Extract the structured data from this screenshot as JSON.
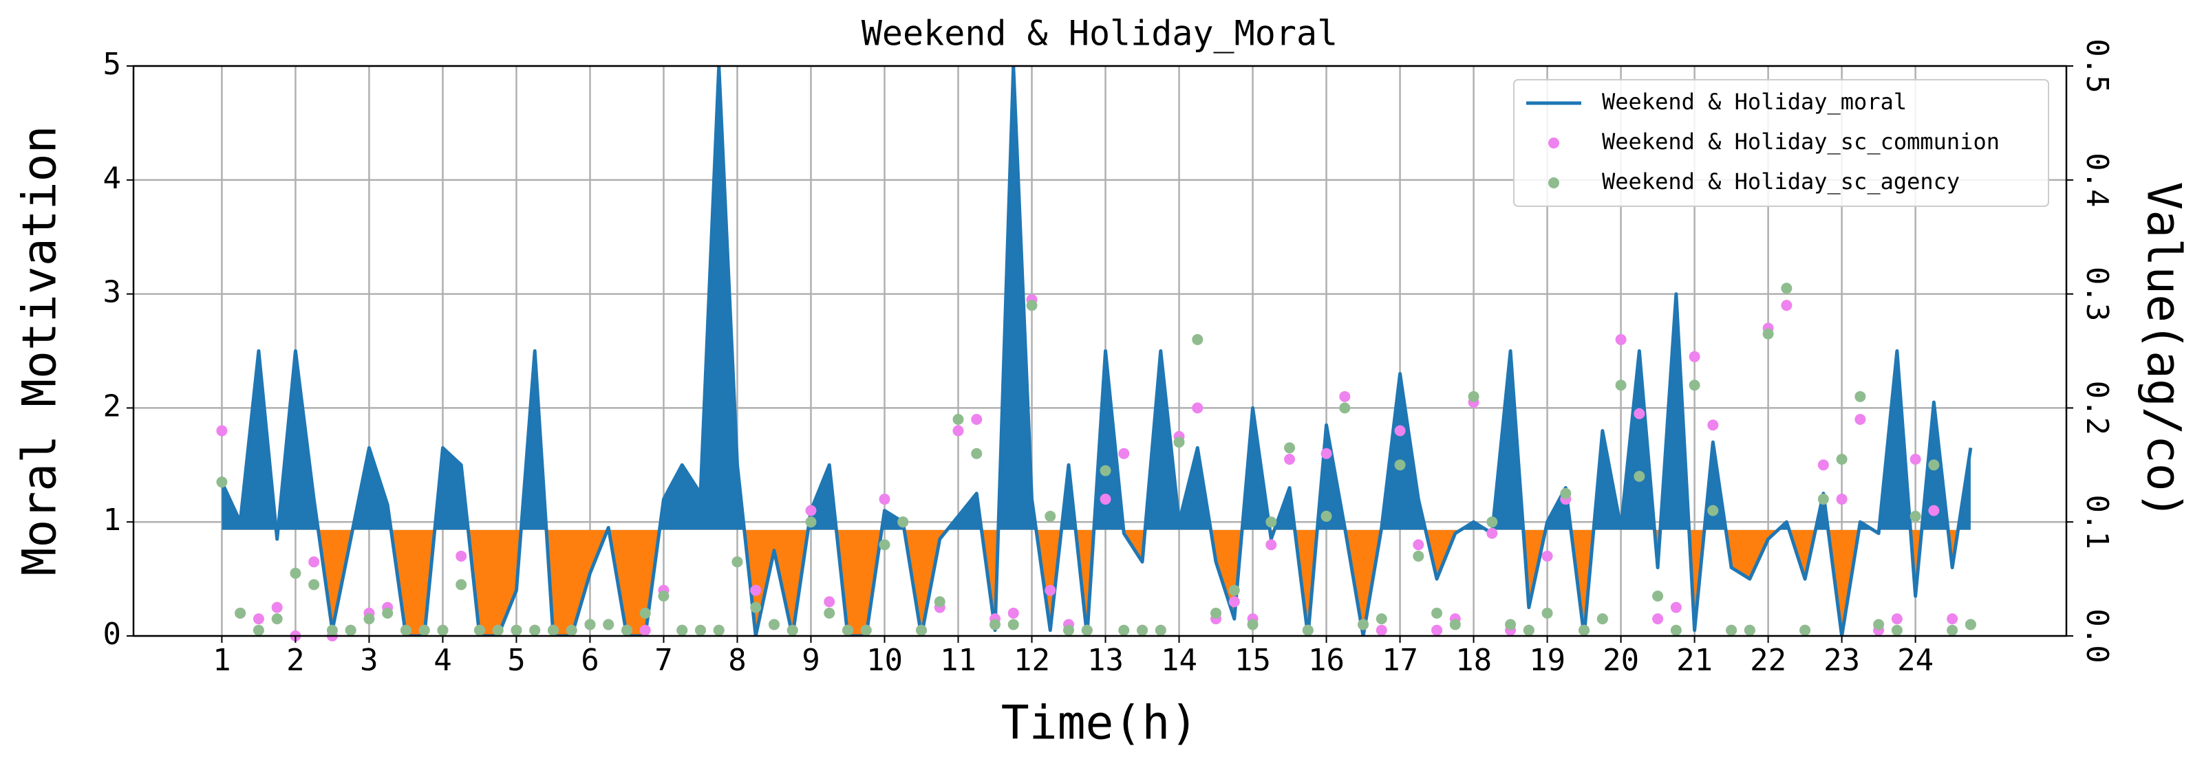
{
  "chart_data": {
    "type": "line",
    "title": "Weekend & Holiday_Moral",
    "xlabel": "Time(h)",
    "ylabel": "Moral Motivation",
    "y2label": "Value(ag/co)",
    "x": [
      1,
      1.25,
      1.5,
      1.75,
      2,
      2.25,
      2.5,
      2.75,
      3,
      3.25,
      3.5,
      3.75,
      4,
      4.25,
      4.5,
      4.75,
      5,
      5.25,
      5.5,
      5.75,
      6,
      6.25,
      6.5,
      6.75,
      7,
      7.25,
      7.5,
      7.75,
      8,
      8.25,
      8.5,
      8.75,
      9,
      9.25,
      9.5,
      9.75,
      10,
      10.25,
      10.5,
      10.75,
      11,
      11.25,
      11.5,
      11.75,
      12,
      12.25,
      12.5,
      12.75,
      13,
      13.25,
      13.5,
      13.75,
      14,
      14.25,
      14.5,
      14.75,
      15,
      15.25,
      15.5,
      15.75,
      16,
      16.25,
      16.5,
      16.75,
      17,
      17.25,
      17.5,
      17.75,
      18,
      18.25,
      18.5,
      18.75,
      19,
      19.25,
      19.5,
      19.75,
      20,
      20.25,
      20.5,
      20.75,
      21,
      21.25,
      21.5,
      21.75,
      22,
      22.25,
      22.5,
      22.75,
      23,
      23.25,
      23.5,
      23.75,
      24,
      24.25,
      24.5,
      24.75
    ],
    "xlim": [
      -0.2,
      26.05
    ],
    "xticks": [
      1,
      2,
      3,
      4,
      5,
      6,
      7,
      8,
      9,
      10,
      11,
      12,
      13,
      14,
      15,
      16,
      17,
      18,
      19,
      20,
      21,
      22,
      23,
      24
    ],
    "ylim": [
      0,
      5
    ],
    "yticks": [
      0,
      1,
      2,
      3,
      4,
      5
    ],
    "y2lim": [
      0,
      0.5
    ],
    "y2ticks": [
      {
        "value": 0,
        "label": "0.0"
      },
      {
        "value": 0.1,
        "label": "0.1"
      },
      {
        "value": 0.2,
        "label": "0.2"
      },
      {
        "value": 0.3,
        "label": "0.3"
      },
      {
        "value": 0.4,
        "label": "0.4"
      },
      {
        "value": 0.5,
        "label": "0.5"
      }
    ],
    "grid": true,
    "legend": "upper right",
    "fill": {
      "level": 0.93,
      "above_color": "#1f77b4",
      "below_color": "#ff7f0e"
    },
    "series": [
      {
        "name": "Weekend & Holiday_moral",
        "color": "#1f77b4",
        "style": "line",
        "values": [
          1.35,
          1.0,
          2.5,
          0.85,
          2.5,
          1.2,
          0.05,
          0.85,
          1.65,
          1.15,
          0.0,
          0.0,
          1.65,
          1.5,
          0.0,
          0.0,
          0.4,
          2.5,
          0.0,
          0.0,
          0.55,
          0.95,
          0.0,
          0.0,
          1.2,
          1.5,
          1.25,
          5.0,
          1.5,
          0.0,
          0.75,
          0.0,
          1.1,
          1.5,
          0.0,
          0.0,
          1.1,
          1.0,
          0.0,
          0.85,
          1.05,
          1.25,
          0.05,
          5.0,
          1.2,
          0.05,
          1.5,
          0.0,
          2.5,
          0.9,
          0.65,
          2.5,
          1.0,
          1.65,
          0.65,
          0.15,
          2.0,
          0.85,
          1.3,
          0.0,
          1.85,
          0.95,
          0.0,
          0.95,
          2.3,
          1.2,
          0.5,
          0.9,
          1.0,
          0.9,
          2.5,
          0.25,
          1.0,
          1.3,
          0.0,
          1.8,
          0.95,
          2.5,
          0.6,
          3.0,
          0.05,
          1.7,
          0.6,
          0.5,
          0.85,
          1.0,
          0.5,
          1.25,
          0.0,
          1.0,
          0.9,
          2.5,
          0.35,
          2.05,
          0.6,
          1.65
        ]
      },
      {
        "name": "Weekend & Holiday_sc_communion",
        "color": "#ee82ee",
        "style": "scatter",
        "axis": "y2",
        "values": [
          0.18,
          0.02,
          0.015,
          0.025,
          0.0,
          0.065,
          0.0,
          0.005,
          0.02,
          0.025,
          0.005,
          0.005,
          0.005,
          0.07,
          0.005,
          0.005,
          0.005,
          0.005,
          0.005,
          0.005,
          0.01,
          0.01,
          0.005,
          0.005,
          0.04,
          0.005,
          0.005,
          0.005,
          0.065,
          0.04,
          0.01,
          0.005,
          0.11,
          0.03,
          0.005,
          0.005,
          0.12,
          0.1,
          0.005,
          0.025,
          0.18,
          0.19,
          0.015,
          0.02,
          0.295,
          0.04,
          0.01,
          0.005,
          0.12,
          0.16,
          0.005,
          0.005,
          0.175,
          0.2,
          0.015,
          0.03,
          0.015,
          0.08,
          0.155,
          0.005,
          0.16,
          0.21,
          0.01,
          0.005,
          0.18,
          0.08,
          0.005,
          0.015,
          0.205,
          0.09,
          0.005,
          0.005,
          0.07,
          0.12,
          0.005,
          0.015,
          0.26,
          0.195,
          0.015,
          0.025,
          0.245,
          0.185,
          0.005,
          0.005,
          0.27,
          0.29,
          0.005,
          0.15,
          0.12,
          0.19,
          0.005,
          0.015,
          0.155,
          0.11,
          0.015,
          0.01
        ]
      },
      {
        "name": "Weekend & Holiday_sc_agency",
        "color": "#8fbc8f",
        "style": "scatter",
        "axis": "y2",
        "values": [
          0.135,
          0.02,
          0.005,
          0.015,
          0.055,
          0.045,
          0.005,
          0.005,
          0.015,
          0.02,
          0.005,
          0.005,
          0.005,
          0.045,
          0.005,
          0.005,
          0.005,
          0.005,
          0.005,
          0.005,
          0.01,
          0.01,
          0.005,
          0.02,
          0.035,
          0.005,
          0.005,
          0.005,
          0.065,
          0.025,
          0.01,
          0.005,
          0.1,
          0.02,
          0.005,
          0.005,
          0.08,
          0.1,
          0.005,
          0.03,
          0.19,
          0.16,
          0.01,
          0.01,
          0.29,
          0.105,
          0.005,
          0.005,
          0.145,
          0.005,
          0.005,
          0.005,
          0.17,
          0.26,
          0.02,
          0.04,
          0.01,
          0.1,
          0.165,
          0.005,
          0.105,
          0.2,
          0.01,
          0.015,
          0.15,
          0.07,
          0.02,
          0.01,
          0.21,
          0.1,
          0.01,
          0.005,
          0.02,
          0.125,
          0.005,
          0.015,
          0.22,
          0.14,
          0.035,
          0.005,
          0.22,
          0.11,
          0.005,
          0.005,
          0.265,
          0.305,
          0.005,
          0.12,
          0.155,
          0.21,
          0.01,
          0.005,
          0.105,
          0.15,
          0.005,
          0.01
        ]
      }
    ]
  }
}
